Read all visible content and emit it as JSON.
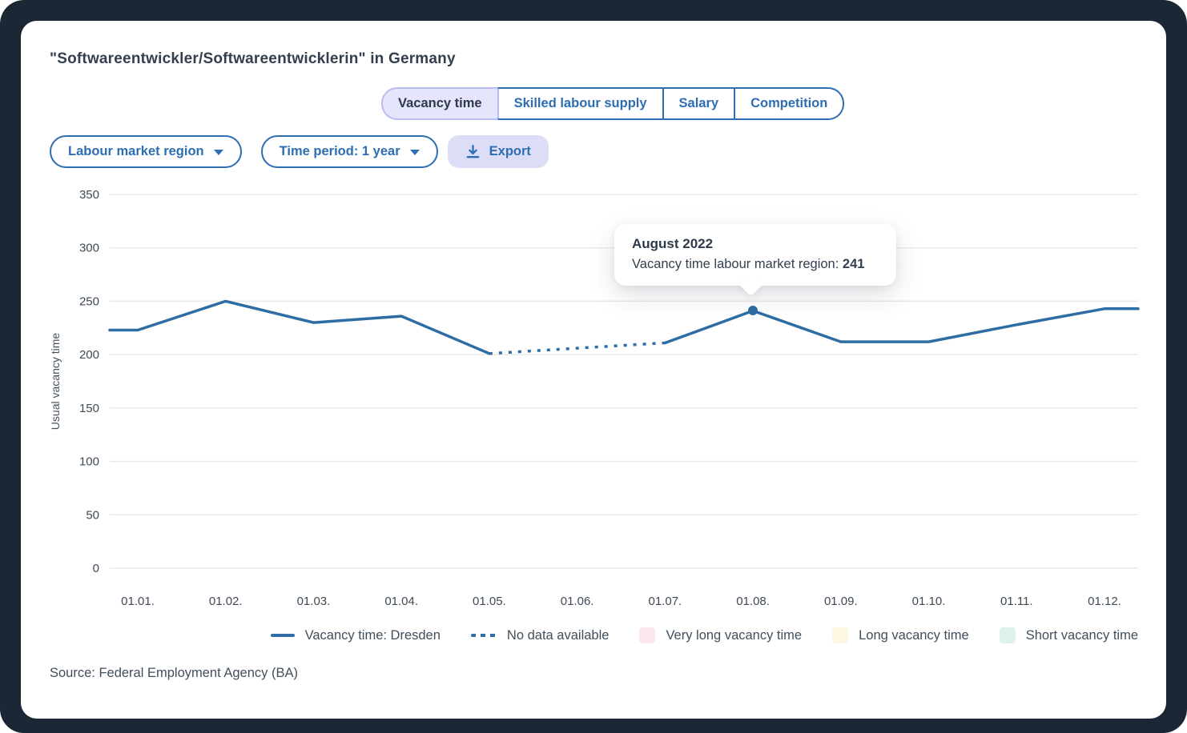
{
  "header": {
    "title": "\"Softwareentwickler/Softwareentwicklerin\" in Germany"
  },
  "tabs": [
    {
      "label": "Vacancy time",
      "active": true
    },
    {
      "label": "Skilled labour supply",
      "active": false
    },
    {
      "label": "Salary",
      "active": false
    },
    {
      "label": "Competition",
      "active": false
    }
  ],
  "controls": {
    "region_dropdown": {
      "label": "Labour market region"
    },
    "period_dropdown": {
      "label": "Time period: 1 year"
    },
    "export_button": {
      "label": "Export",
      "icon": "download-icon"
    }
  },
  "tooltip": {
    "title": "August 2022",
    "label": "Vacancy time labour market region: ",
    "value": "241"
  },
  "chart_data": {
    "type": "line",
    "x": [
      "01.01.",
      "01.02.",
      "01.03.",
      "01.04.",
      "01.05.",
      "01.06.",
      "01.07.",
      "01.08.",
      "01.09.",
      "01.10.",
      "01.11.",
      "01.12."
    ],
    "series": [
      {
        "name": "Vacancy time: Dresden",
        "color": "#2e6da4",
        "values": [
          223,
          250,
          230,
          236,
          201,
          null,
          211,
          241,
          212,
          212,
          228,
          243
        ]
      }
    ],
    "missing_data": {
      "note": "No data available between 01.05. and 01.07., drawn as dotted line",
      "null_month": "01.06."
    },
    "highlight": {
      "month": "August 2022",
      "index": 7,
      "value": 241
    },
    "ylabel": "Usual vacancy time",
    "ylim": [
      0,
      350
    ],
    "yticks": [
      0,
      50,
      100,
      150,
      200,
      250,
      300,
      350
    ],
    "grid": true,
    "legend_position": "bottom",
    "legend": [
      {
        "label": "Vacancy time: Dresden",
        "swatch": "line",
        "color": "#2e6da4"
      },
      {
        "label": "No data available",
        "swatch": "dashed-line",
        "color": "#2e6da4"
      },
      {
        "label": "Very long vacancy time",
        "swatch": "square",
        "color": "#fce8ec"
      },
      {
        "label": "Long vacancy time",
        "swatch": "square",
        "color": "#fdf6e3"
      },
      {
        "label": "Short vacancy time",
        "swatch": "square",
        "color": "#def2ea"
      }
    ]
  },
  "footer": {
    "source": "Source: Federal Employment Agency (BA)"
  },
  "colors": {
    "frame": "#1c2736",
    "accent_blue": "#2d6eb2",
    "line": "#2e6da4",
    "active_tab_bg": "#e5e5fb",
    "active_tab_border": "#babdf1",
    "export_bg": "#dcddf6",
    "grid": "#eaeaea",
    "text_dark": "#2c3a49",
    "very_long_swatch": "#fce8ec",
    "long_swatch": "#fdf6e3",
    "short_swatch": "#def2ea"
  }
}
